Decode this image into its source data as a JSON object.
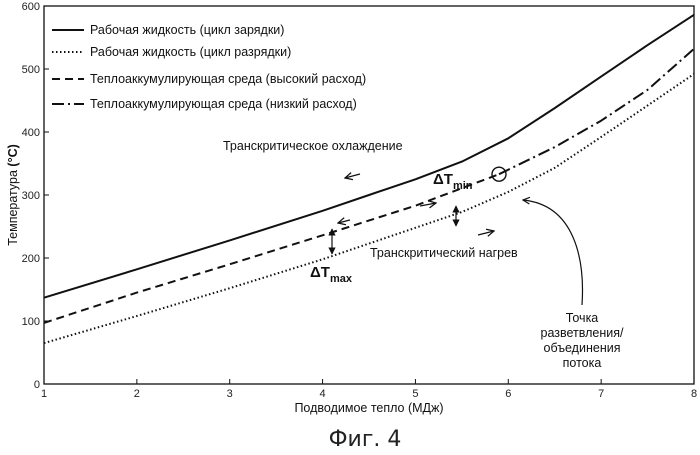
{
  "chart_data": {
    "type": "line",
    "title": "",
    "xlabel": "Подводимое тепло (МДж)",
    "ylabel_text": "Температура",
    "ylabel_unit": "(°C)",
    "xlim": [
      1,
      8
    ],
    "ylim": [
      0,
      600
    ],
    "xticks": [
      1,
      2,
      3,
      4,
      5,
      6,
      7,
      8
    ],
    "yticks": [
      0,
      100,
      200,
      300,
      400,
      500,
      600
    ],
    "grid": false,
    "legend_position": "top-left",
    "series": [
      {
        "name": "Рабочая жидкость (цикл зарядки)",
        "style": "solid",
        "x": [
          1,
          2,
          3,
          4,
          4.5,
          5,
          5.5,
          6,
          6.5,
          7,
          7.5,
          8
        ],
        "y": [
          137,
          182,
          228,
          275,
          300,
          325,
          353,
          390,
          438,
          488,
          538,
          586
        ]
      },
      {
        "name": "Рабочая жидкость (цикл разрядки)",
        "style": "dotted",
        "x": [
          1,
          2,
          3,
          4,
          5,
          5.5,
          6,
          6.5,
          7,
          7.5,
          8
        ],
        "y": [
          65,
          108,
          152,
          198,
          248,
          273,
          305,
          343,
          392,
          442,
          492
        ]
      },
      {
        "name": "Теплоаккумулирующая среда (высокий расход)",
        "style": "dashed",
        "x": [
          1,
          2,
          3,
          4,
          5,
          5.9
        ],
        "y": [
          97,
          145,
          190,
          236,
          283,
          333
        ]
      },
      {
        "name": "Теплоаккумулирующая среда (низкий расход)",
        "style": "dashdot",
        "x": [
          5.9,
          6.5,
          7,
          7.5,
          8
        ],
        "y": [
          333,
          376,
          418,
          467,
          532
        ]
      }
    ],
    "annotations": {
      "cooling": "Транскритическое охлаждение",
      "heating": "Транскритический нагрев",
      "dt_min_main": "ΔT",
      "dt_min_sub": "min",
      "dt_max_main": "ΔT",
      "dt_max_sub": "max",
      "branch_point": [
        "Точка",
        "разветвления/",
        "объединения",
        "потока"
      ],
      "branch_point_coords": [
        5.9,
        333
      ]
    }
  },
  "caption": "Фиг. 4"
}
